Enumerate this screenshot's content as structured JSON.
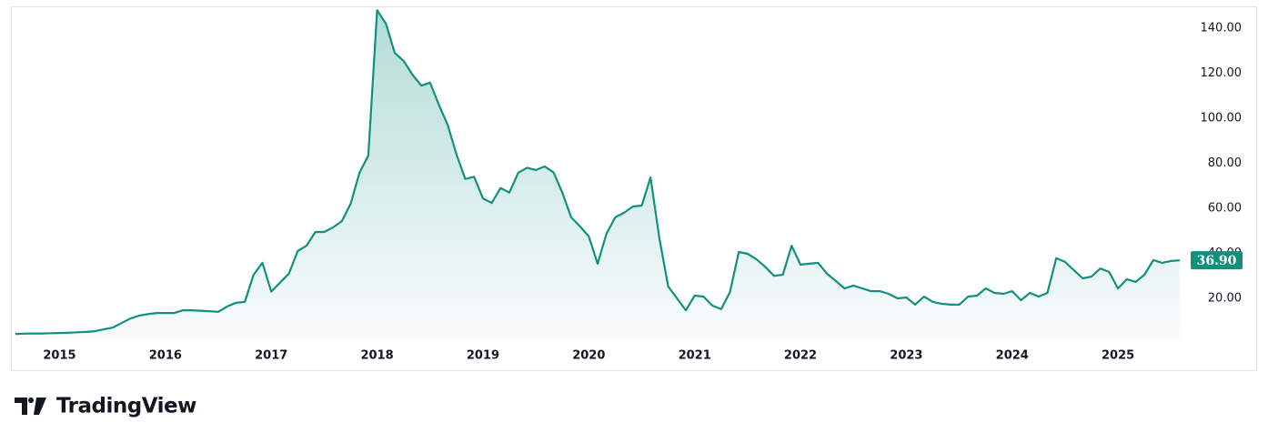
{
  "chart_data": {
    "type": "area",
    "categories": [
      null,
      null,
      null,
      null,
      null,
      "2015",
      null,
      null,
      null,
      null,
      null,
      null,
      null,
      null,
      null,
      null,
      null,
      "2016",
      null,
      null,
      null,
      null,
      null,
      null,
      null,
      null,
      null,
      null,
      null,
      "2017",
      null,
      null,
      null,
      null,
      null,
      null,
      null,
      null,
      null,
      null,
      null,
      "2018",
      null,
      null,
      null,
      null,
      null,
      null,
      null,
      null,
      null,
      null,
      null,
      "2019",
      null,
      null,
      null,
      null,
      null,
      null,
      null,
      null,
      null,
      null,
      null,
      "2020",
      null,
      null,
      null,
      null,
      null,
      null,
      null,
      null,
      null,
      null,
      null,
      "2021",
      null,
      null,
      null,
      null,
      null,
      null,
      null,
      null,
      null,
      null,
      null,
      "2022",
      null,
      null,
      null,
      null,
      null,
      null,
      null,
      null,
      null,
      null,
      null,
      "2023",
      null,
      null,
      null,
      null,
      null,
      null,
      null,
      null,
      null,
      null,
      null,
      "2024",
      null,
      null,
      null,
      null,
      null,
      null,
      null,
      null,
      null,
      null,
      null,
      "2025",
      null,
      null,
      null,
      null,
      null,
      null,
      null
    ],
    "values": [
      4.2,
      4.3,
      4.4,
      4.4,
      4.5,
      4.6,
      4.7,
      4.9,
      5.1,
      5.4,
      6.2,
      7,
      9,
      11,
      12.3,
      13,
      13.5,
      13.5,
      13.5,
      14.7,
      14.7,
      14.5,
      14.3,
      14,
      16.4,
      18,
      18.4,
      30.5,
      35.8,
      23,
      27,
      31,
      41,
      43.4,
      49.5,
      49.5,
      51.5,
      54.3,
      62,
      75.8,
      83.4,
      148,
      142,
      129,
      125.5,
      119.4,
      114.5,
      115.8,
      106,
      97,
      84,
      73,
      74,
      64.4,
      62.4,
      69,
      67,
      75.8,
      78,
      77,
      78.6,
      76,
      67,
      56,
      52,
      47.5,
      35.4,
      48.7,
      56,
      58,
      60.8,
      61.2,
      73.7,
      46.7,
      25.3,
      20,
      14.7,
      21.2,
      20.8,
      16.8,
      15.2,
      22.8,
      40.6,
      39.8,
      37.4,
      34,
      30,
      30.5,
      43.4,
      35,
      35.4,
      35.8,
      31,
      27.7,
      24.4,
      25.7,
      24.4,
      23.2,
      23.2,
      22,
      20,
      20.4,
      17.2,
      20.8,
      18.4,
      17.6,
      17.2,
      17.2,
      20.8,
      21.2,
      24.4,
      22.4,
      22,
      23.2,
      19.2,
      22.4,
      20.8,
      22.4,
      37.8,
      36.2,
      32.5,
      28.9,
      29.7,
      33.3,
      31.7,
      24.4,
      28.5,
      27.3,
      30.5,
      37,
      35.8,
      36.6,
      36.9
    ],
    "color": "#11907e",
    "last_value": {
      "value": 36.9,
      "label": "36.90"
    },
    "ylim": [
      1.0,
      149.3
    ],
    "yticks": [
      {
        "value": 20,
        "label": "20.00"
      },
      {
        "value": 40,
        "label": "40.00"
      },
      {
        "value": 60,
        "label": "60.00"
      },
      {
        "value": 80,
        "label": "80.00"
      },
      {
        "value": 100,
        "label": "100.00"
      },
      {
        "value": 120,
        "label": "120.00"
      },
      {
        "value": 140,
        "label": "140.00"
      }
    ],
    "grid": false
  },
  "branding": "TradingView"
}
